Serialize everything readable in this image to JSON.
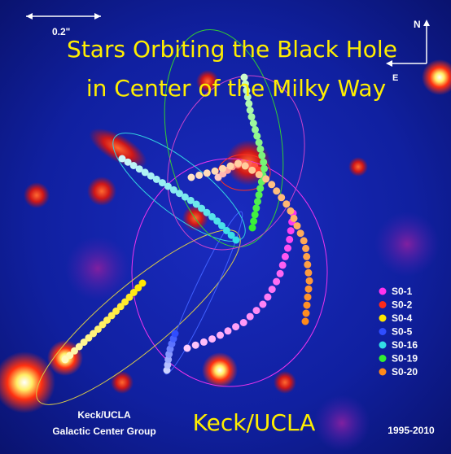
{
  "title": {
    "lines": [
      "Stars Orbiting the Black Hole",
      "in Center of the Milky Way"
    ]
  },
  "scale_bar": "0.2\"",
  "compass": {
    "north": "N",
    "east": "E"
  },
  "legend": [
    {
      "label": "S0-1",
      "color": "#ff33ee"
    },
    {
      "label": "S0-2",
      "color": "#ff2a1a"
    },
    {
      "label": "S0-4",
      "color": "#ffe600"
    },
    {
      "label": "S0-5",
      "color": "#2f4dff"
    },
    {
      "label": "S0-16",
      "color": "#33dde6"
    },
    {
      "label": "S0-19",
      "color": "#33ee33"
    },
    {
      "label": "S0-20",
      "color": "#ff8a1a"
    }
  ],
  "credits": {
    "group": [
      "Keck/UCLA",
      "Galactic Center Group"
    ],
    "watermark": "Keck/UCLA",
    "date_range": "1995-2010"
  }
}
